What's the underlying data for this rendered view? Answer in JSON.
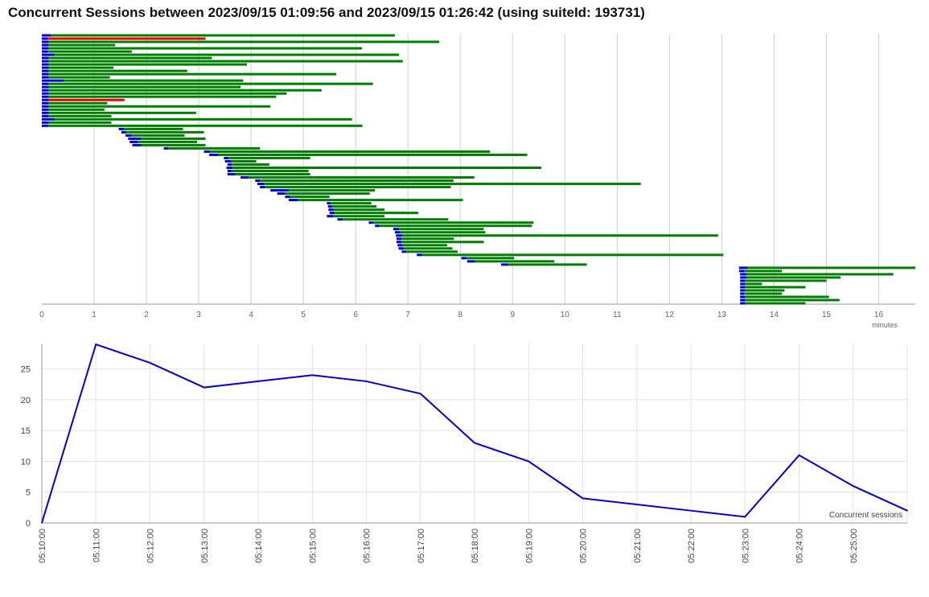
{
  "title": "Concurrent Sessions between 2023/09/15 01:09:56 and 2023/09/15 01:26:42 (using suiteId: 193731)",
  "colors": {
    "queued": "#0000dd",
    "passed": "#008000",
    "failed": "#ee0000",
    "line": "#0000dd",
    "grid": "#d0d0d0"
  },
  "chart_data": [
    {
      "type": "gantt",
      "xlabel": "minutes",
      "xlim": [
        0,
        16.7
      ],
      "xticks": [
        0,
        1,
        2,
        3,
        4,
        5,
        6,
        7,
        8,
        9,
        10,
        11,
        12,
        13,
        14,
        15,
        16
      ],
      "sessions": [
        {
          "start": 0,
          "queue": 0.18,
          "end": 6.75,
          "status": "passed"
        },
        {
          "start": 0,
          "queue": 0.12,
          "end": 3.13,
          "status": "failed"
        },
        {
          "start": 0,
          "queue": 0.13,
          "end": 7.6,
          "status": "passed"
        },
        {
          "start": 0,
          "queue": 0.13,
          "end": 1.4,
          "status": "passed"
        },
        {
          "start": 0,
          "queue": 0.13,
          "end": 6.12,
          "status": "passed"
        },
        {
          "start": 0,
          "queue": 0.12,
          "end": 1.72,
          "status": "passed"
        },
        {
          "start": 0,
          "queue": 0.25,
          "end": 6.83,
          "status": "passed"
        },
        {
          "start": 0,
          "queue": 0.13,
          "end": 3.25,
          "status": "passed"
        },
        {
          "start": 0,
          "queue": 0.13,
          "end": 6.9,
          "status": "passed"
        },
        {
          "start": 0,
          "queue": 0.13,
          "end": 3.92,
          "status": "passed"
        },
        {
          "start": 0,
          "queue": 0.13,
          "end": 1.37,
          "status": "passed"
        },
        {
          "start": 0,
          "queue": 0.13,
          "end": 2.78,
          "status": "passed"
        },
        {
          "start": 0,
          "queue": 0.13,
          "end": 5.63,
          "status": "passed"
        },
        {
          "start": 0,
          "queue": 0.13,
          "end": 1.3,
          "status": "passed"
        },
        {
          "start": 0,
          "queue": 0.42,
          "end": 3.85,
          "status": "passed"
        },
        {
          "start": 0,
          "queue": 0.13,
          "end": 6.33,
          "status": "passed"
        },
        {
          "start": 0,
          "queue": 0.13,
          "end": 3.8,
          "status": "passed"
        },
        {
          "start": 0,
          "queue": 0.13,
          "end": 5.35,
          "status": "passed"
        },
        {
          "start": 0,
          "queue": 0.13,
          "end": 4.68,
          "status": "passed"
        },
        {
          "start": 0,
          "queue": 0.13,
          "end": 4.48,
          "status": "passed"
        },
        {
          "start": 0,
          "queue": 0.13,
          "end": 1.58,
          "status": "failed"
        },
        {
          "start": 0,
          "queue": 0.13,
          "end": 1.25,
          "status": "passed"
        },
        {
          "start": 0,
          "queue": 0.13,
          "end": 4.37,
          "status": "passed"
        },
        {
          "start": 0,
          "queue": 0.13,
          "end": 1.2,
          "status": "passed"
        },
        {
          "start": 0,
          "queue": 0.13,
          "end": 2.95,
          "status": "passed"
        },
        {
          "start": 0,
          "queue": 0.13,
          "end": 1.33,
          "status": "passed"
        },
        {
          "start": 0,
          "queue": 0.25,
          "end": 5.93,
          "status": "passed"
        },
        {
          "start": 0,
          "queue": 0.13,
          "end": 1.33,
          "status": "passed"
        },
        {
          "start": 0,
          "queue": 0.13,
          "end": 6.13,
          "status": "passed"
        },
        {
          "start": 1.47,
          "queue": 1.57,
          "end": 2.7,
          "status": "passed"
        },
        {
          "start": 1.52,
          "queue": 1.62,
          "end": 3.1,
          "status": "passed"
        },
        {
          "start": 1.6,
          "queue": 1.72,
          "end": 2.73,
          "status": "passed"
        },
        {
          "start": 1.65,
          "queue": 1.9,
          "end": 3.13,
          "status": "passed"
        },
        {
          "start": 1.68,
          "queue": 1.83,
          "end": 2.97,
          "status": "passed"
        },
        {
          "start": 1.73,
          "queue": 1.9,
          "end": 3.13,
          "status": "passed"
        },
        {
          "start": 2.33,
          "queue": 2.42,
          "end": 4.17,
          "status": "passed"
        },
        {
          "start": 3.1,
          "queue": 3.22,
          "end": 8.57,
          "status": "passed"
        },
        {
          "start": 3.2,
          "queue": 3.38,
          "end": 9.28,
          "status": "passed"
        },
        {
          "start": 3.48,
          "queue": 3.57,
          "end": 5.13,
          "status": "passed"
        },
        {
          "start": 3.5,
          "queue": 3.62,
          "end": 4.1,
          "status": "passed"
        },
        {
          "start": 3.55,
          "queue": 3.63,
          "end": 4.35,
          "status": "passed"
        },
        {
          "start": 3.53,
          "queue": 3.65,
          "end": 9.55,
          "status": "passed"
        },
        {
          "start": 3.55,
          "queue": 3.62,
          "end": 5.1,
          "status": "passed"
        },
        {
          "start": 3.55,
          "queue": 3.7,
          "end": 5.13,
          "status": "passed"
        },
        {
          "start": 3.8,
          "queue": 3.95,
          "end": 8.27,
          "status": "passed"
        },
        {
          "start": 4.08,
          "queue": 4.18,
          "end": 7.87,
          "status": "passed"
        },
        {
          "start": 4.12,
          "queue": 4.25,
          "end": 11.45,
          "status": "passed"
        },
        {
          "start": 4.17,
          "queue": 4.27,
          "end": 7.82,
          "status": "passed"
        },
        {
          "start": 4.37,
          "queue": 4.72,
          "end": 6.37,
          "status": "passed"
        },
        {
          "start": 4.5,
          "queue": 4.65,
          "end": 6.27,
          "status": "passed"
        },
        {
          "start": 4.65,
          "queue": 4.75,
          "end": 5.5,
          "status": "passed"
        },
        {
          "start": 4.72,
          "queue": 4.9,
          "end": 8.05,
          "status": "passed"
        },
        {
          "start": 5.45,
          "queue": 5.52,
          "end": 6.3,
          "status": "passed"
        },
        {
          "start": 5.47,
          "queue": 5.55,
          "end": 6.4,
          "status": "passed"
        },
        {
          "start": 5.48,
          "queue": 5.58,
          "end": 6.55,
          "status": "passed"
        },
        {
          "start": 5.5,
          "queue": 5.6,
          "end": 7.2,
          "status": "passed"
        },
        {
          "start": 5.45,
          "queue": 5.57,
          "end": 6.55,
          "status": "passed"
        },
        {
          "start": 5.65,
          "queue": 5.75,
          "end": 7.77,
          "status": "passed"
        },
        {
          "start": 6.25,
          "queue": 6.33,
          "end": 9.4,
          "status": "passed"
        },
        {
          "start": 6.37,
          "queue": 6.45,
          "end": 9.37,
          "status": "passed"
        },
        {
          "start": 6.72,
          "queue": 6.83,
          "end": 8.45,
          "status": "passed"
        },
        {
          "start": 6.75,
          "queue": 6.85,
          "end": 8.48,
          "status": "passed"
        },
        {
          "start": 6.77,
          "queue": 6.9,
          "end": 12.93,
          "status": "passed"
        },
        {
          "start": 6.78,
          "queue": 6.88,
          "end": 7.88,
          "status": "passed"
        },
        {
          "start": 6.78,
          "queue": 6.88,
          "end": 8.45,
          "status": "passed"
        },
        {
          "start": 6.8,
          "queue": 6.9,
          "end": 7.75,
          "status": "passed"
        },
        {
          "start": 6.82,
          "queue": 6.92,
          "end": 7.85,
          "status": "passed"
        },
        {
          "start": 6.88,
          "queue": 6.97,
          "end": 7.95,
          "status": "passed"
        },
        {
          "start": 7.17,
          "queue": 7.27,
          "end": 13.03,
          "status": "passed"
        },
        {
          "start": 8.02,
          "queue": 8.12,
          "end": 9.03,
          "status": "passed"
        },
        {
          "start": 8.13,
          "queue": 8.28,
          "end": 9.8,
          "status": "passed"
        },
        {
          "start": 8.78,
          "queue": 8.92,
          "end": 10.42,
          "status": "passed"
        },
        {
          "start": 13.33,
          "queue": 13.5,
          "end": 16.7,
          "status": "passed"
        },
        {
          "start": 13.33,
          "queue": 13.43,
          "end": 14.15,
          "status": "passed"
        },
        {
          "start": 13.35,
          "queue": 13.47,
          "end": 16.28,
          "status": "passed"
        },
        {
          "start": 13.35,
          "queue": 13.48,
          "end": 15.27,
          "status": "passed"
        },
        {
          "start": 13.35,
          "queue": 13.45,
          "end": 15.0,
          "status": "passed"
        },
        {
          "start": 13.35,
          "queue": 13.45,
          "end": 13.77,
          "status": "passed"
        },
        {
          "start": 13.35,
          "queue": 13.45,
          "end": 14.6,
          "status": "passed"
        },
        {
          "start": 13.35,
          "queue": 13.45,
          "end": 14.2,
          "status": "passed"
        },
        {
          "start": 13.35,
          "queue": 13.43,
          "end": 14.15,
          "status": "passed"
        },
        {
          "start": 13.35,
          "queue": 13.45,
          "end": 15.05,
          "status": "passed"
        },
        {
          "start": 13.35,
          "queue": 13.45,
          "end": 15.25,
          "status": "passed"
        },
        {
          "start": 13.35,
          "queue": 13.45,
          "end": 14.6,
          "status": "passed"
        }
      ]
    },
    {
      "type": "line",
      "x": [
        "05:10:00",
        "05:11:00",
        "05:12:00",
        "05:13:00",
        "05:14:00",
        "05:15:00",
        "05:16:00",
        "05:17:00",
        "05:18:00",
        "05:19:00",
        "05:20:00",
        "05:21:00",
        "05:22:00",
        "05:23:00",
        "05:24:00",
        "05:25:00",
        ""
      ],
      "xticks": [
        "05:10:00",
        "05:11:00",
        "05:12:00",
        "05:13:00",
        "05:14:00",
        "05:15:00",
        "05:16:00",
        "05:17:00",
        "05:18:00",
        "05:19:00",
        "05:20:00",
        "05:21:00",
        "05:22:00",
        "05:23:00",
        "05:24:00",
        "05:25:00"
      ],
      "yticks": [
        0,
        5,
        10,
        15,
        20,
        25
      ],
      "ylim": [
        0,
        29
      ],
      "series": [
        {
          "name": "Concurrent sessions",
          "values": [
            0,
            29,
            26,
            22,
            23,
            24,
            23,
            21,
            13,
            10,
            4,
            3,
            2,
            1,
            11,
            6,
            2
          ]
        }
      ],
      "legend": "bottom-right"
    }
  ]
}
